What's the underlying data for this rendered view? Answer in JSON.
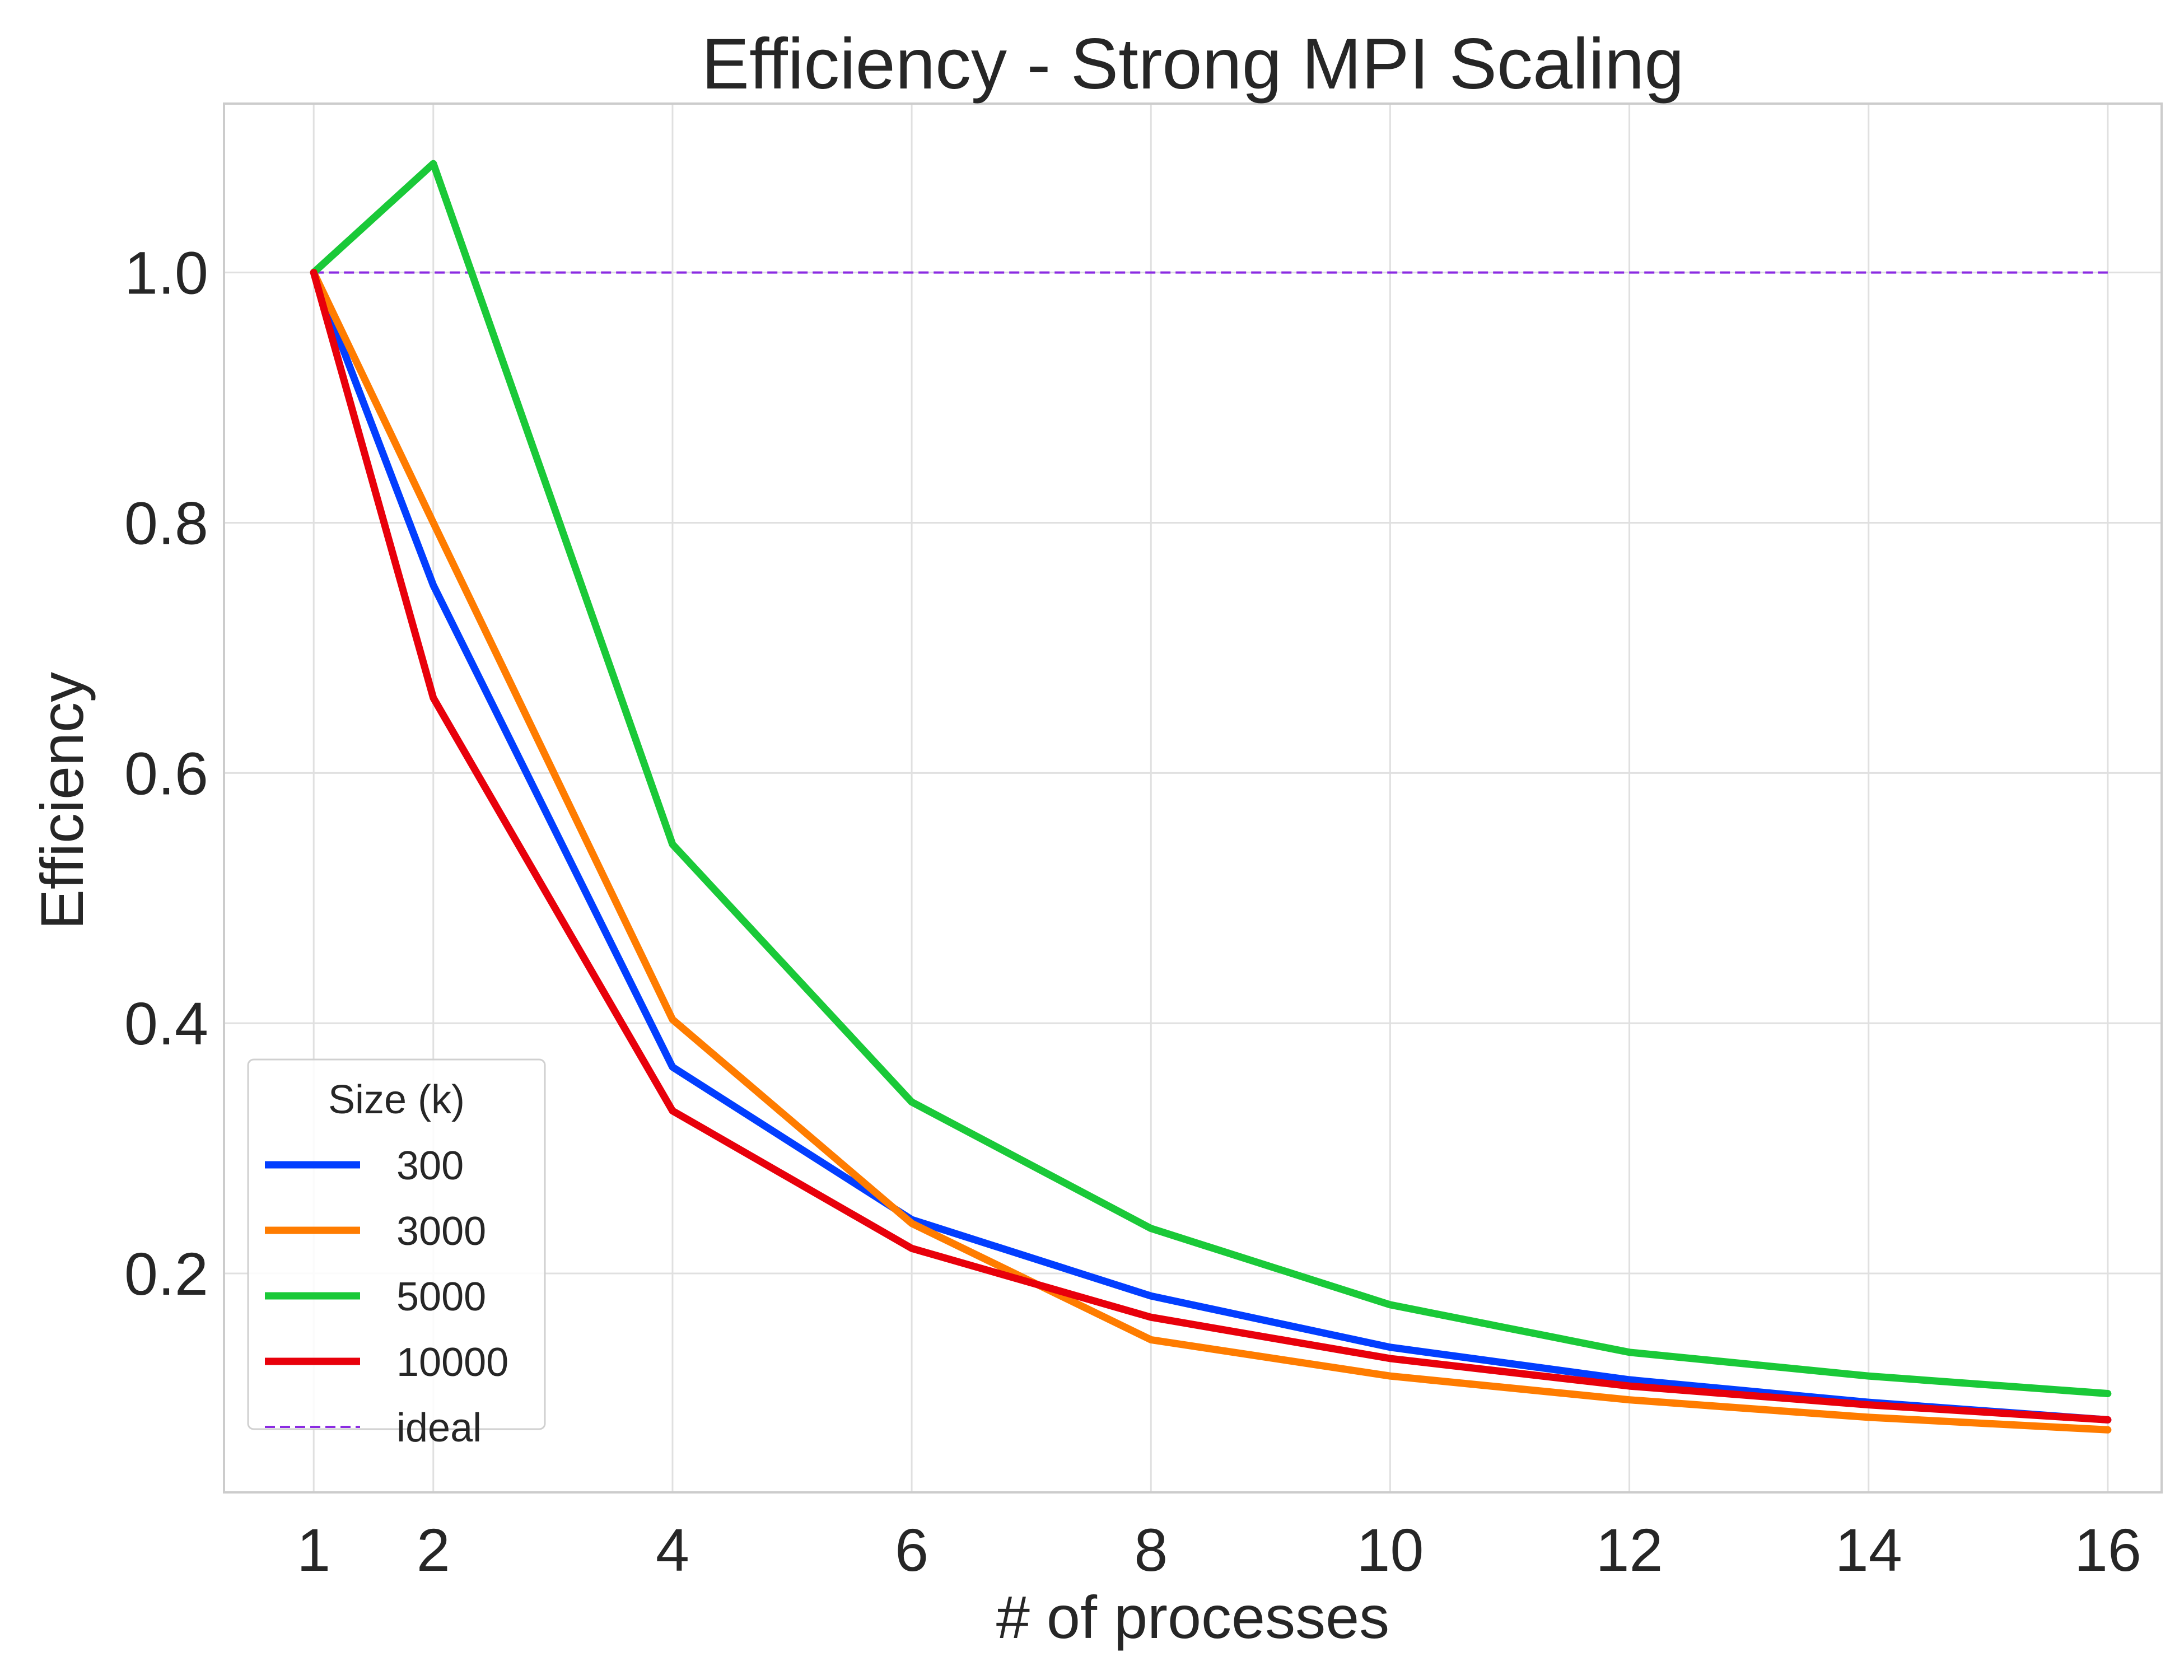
{
  "chart_data": {
    "type": "line",
    "title": "Efficiency - Strong MPI Scaling",
    "xlabel": "# of processes",
    "ylabel": "Efficiency",
    "x_ticks": [
      1,
      2,
      4,
      6,
      8,
      10,
      12,
      14,
      16
    ],
    "y_ticks": [
      0.2,
      0.4,
      0.6,
      0.8,
      1.0
    ],
    "xlim": [
      0.25,
      16.45
    ],
    "ylim": [
      0.025,
      1.135
    ],
    "grid": true,
    "legend": {
      "title": "Size (k)",
      "placement": "lower-left"
    },
    "x": [
      1,
      2,
      4,
      6,
      8,
      10,
      12,
      14,
      16
    ],
    "series": [
      {
        "name": "300",
        "color": "#023eff",
        "style": "solid",
        "values": [
          1.0,
          0.75,
          0.365,
          0.243,
          0.182,
          0.141,
          0.115,
          0.097,
          0.083
        ]
      },
      {
        "name": "3000",
        "color": "#ff7c00",
        "style": "solid",
        "values": [
          1.0,
          0.8,
          0.403,
          0.24,
          0.147,
          0.118,
          0.099,
          0.085,
          0.075
        ]
      },
      {
        "name": "5000",
        "color": "#1ac938",
        "style": "solid",
        "values": [
          1.0,
          1.087,
          0.543,
          0.337,
          0.236,
          0.175,
          0.137,
          0.118,
          0.104
        ]
      },
      {
        "name": "10000",
        "color": "#e8000b",
        "style": "solid",
        "values": [
          1.0,
          0.66,
          0.33,
          0.22,
          0.165,
          0.132,
          0.11,
          0.095,
          0.083
        ]
      },
      {
        "name": "ideal",
        "color": "#8b2be2",
        "style": "dashed",
        "values": [
          1.0,
          1.0,
          1.0,
          1.0,
          1.0,
          1.0,
          1.0,
          1.0,
          1.0
        ]
      }
    ]
  }
}
